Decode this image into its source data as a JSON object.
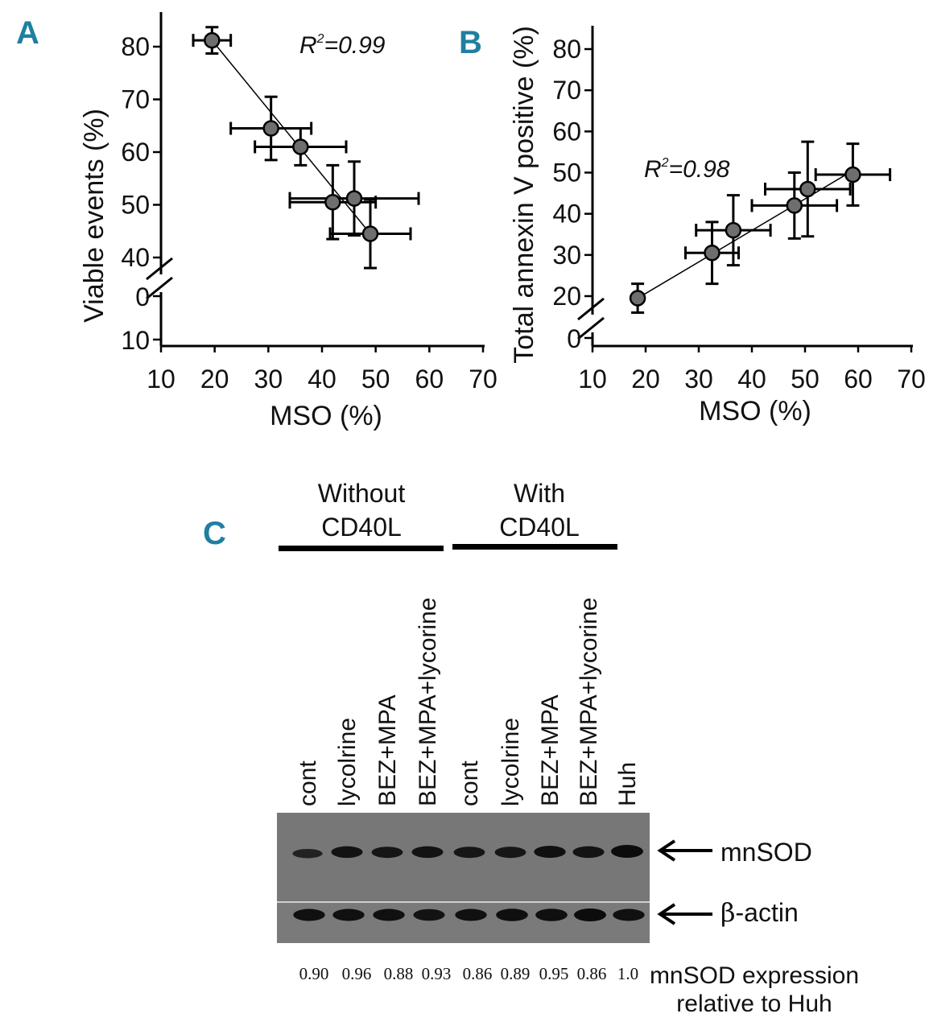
{
  "panel_a": {
    "letter": "A"
  },
  "panel_b": {
    "letter": "B"
  },
  "panel_c": {
    "letter": "C"
  },
  "chart_data": [
    {
      "type": "scatter",
      "id": "A",
      "title": "",
      "xlabel": "MSO (%)",
      "ylabel": "Viable events (%)",
      "annotation": {
        "r2_prefix": "R",
        "r2_sup": "2",
        "r2_value": "=0.99"
      },
      "xlim": [
        10,
        70
      ],
      "xticks": [
        "10",
        "20",
        "30",
        "40",
        "50",
        "60",
        "70"
      ],
      "ylim": [
        35,
        82
      ],
      "yticks": [
        "40",
        "50",
        "60",
        "70",
        "80"
      ],
      "ybreak_ticks": [
        "0",
        "10"
      ],
      "points": [
        {
          "x": 19.5,
          "y": 81.2,
          "xerr": 3.5,
          "yerr": 2.5
        },
        {
          "x": 30.5,
          "y": 64.5,
          "xerr": 7.5,
          "yerr": 6.0
        },
        {
          "x": 36.0,
          "y": 61.0,
          "xerr": 8.5,
          "yerr": 3.5
        },
        {
          "x": 42.0,
          "y": 50.5,
          "xerr": 8.0,
          "yerr": 7.0
        },
        {
          "x": 46.0,
          "y": 51.2,
          "xerr": 12.0,
          "yerr": 7.0
        },
        {
          "x": 49.0,
          "y": 44.5,
          "xerr": 7.5,
          "yerr": 6.5
        }
      ],
      "fit": {
        "x": [
          19.5,
          49.0
        ],
        "y": [
          81.2,
          44.5
        ]
      }
    },
    {
      "type": "scatter",
      "id": "B",
      "title": "",
      "xlabel": "MSO (%)",
      "ylabel": "Total annexin V positive (%)",
      "annotation": {
        "r2_prefix": "R",
        "r2_sup": "2",
        "r2_value": "=0.98"
      },
      "xlim": [
        10,
        70
      ],
      "xticks": [
        "10",
        "20",
        "30",
        "40",
        "50",
        "60",
        "70"
      ],
      "ylim": [
        13,
        84
      ],
      "yticks": [
        "20",
        "30",
        "40",
        "50",
        "60",
        "70",
        "80"
      ],
      "ybreak_ticks": [
        "0"
      ],
      "points": [
        {
          "x": 18.5,
          "y": 19.5,
          "xerr": 0,
          "yerr": 3.5
        },
        {
          "x": 32.5,
          "y": 30.5,
          "xerr": 5.0,
          "yerr": 7.5
        },
        {
          "x": 36.5,
          "y": 36.0,
          "xerr": 7.0,
          "yerr": 8.5
        },
        {
          "x": 48.0,
          "y": 42.0,
          "xerr": 8.0,
          "yerr": 8.0
        },
        {
          "x": 50.5,
          "y": 46.0,
          "xerr": 8.0,
          "yerr": 11.5
        },
        {
          "x": 59.0,
          "y": 49.5,
          "xerr": 7.0,
          "yerr": 7.5
        }
      ],
      "fit": {
        "x": [
          18.5,
          59.0
        ],
        "y": [
          19.5,
          50.5
        ]
      }
    },
    {
      "type": "table",
      "id": "C",
      "groups": [
        {
          "line1": "Without",
          "line2": "CD40L"
        },
        {
          "line1": "With",
          "line2": "CD40L"
        }
      ],
      "lanes": [
        "cont",
        "lycolrine",
        "BEZ+MPA",
        "BEZ+MPA+lycorine",
        "cont",
        "lycolrine",
        "BEZ+MPA",
        "BEZ+MPA+lycorine",
        "Huh"
      ],
      "bands": [
        {
          "label": "mnSOD",
          "intensity": [
            0.55,
            0.85,
            0.8,
            0.85,
            0.8,
            0.8,
            0.9,
            0.85,
            1.0
          ]
        },
        {
          "label": "-actin",
          "greek": "β",
          "intensity": [
            0.9,
            0.9,
            0.9,
            0.85,
            0.9,
            0.95,
            0.95,
            1.0,
            0.9
          ]
        }
      ],
      "values": [
        "0.90",
        "0.96",
        "0.88",
        "0.93",
        "0.86",
        "0.89",
        "0.95",
        "0.86",
        "1.0"
      ],
      "values_label": {
        "line1": "mnSOD expression",
        "line2": "relative to Huh"
      }
    }
  ]
}
